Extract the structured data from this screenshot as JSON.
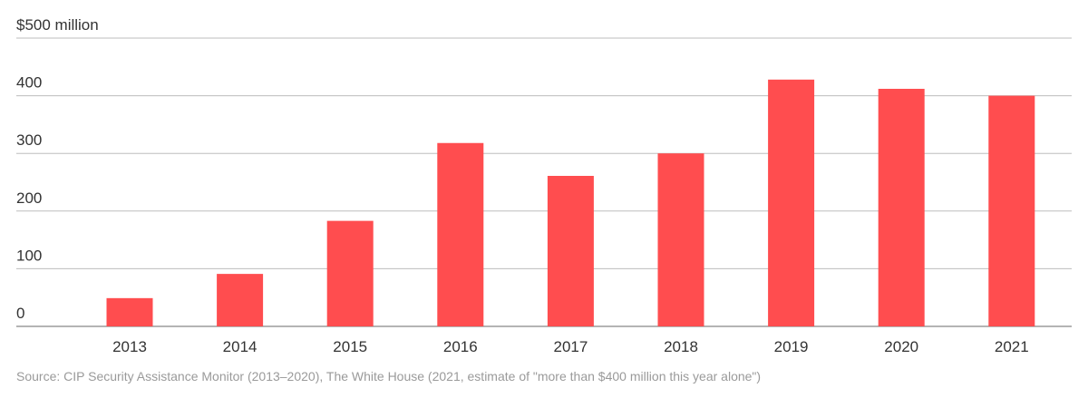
{
  "chart_data": {
    "type": "bar",
    "categories": [
      "2013",
      "2014",
      "2015",
      "2016",
      "2017",
      "2018",
      "2019",
      "2020",
      "2021"
    ],
    "values": [
      49,
      91,
      183,
      318,
      261,
      300,
      428,
      412,
      400
    ],
    "y_tick_labels": [
      "0",
      "100",
      "200",
      "300",
      "400",
      "$500 million"
    ],
    "y_ticks": [
      0,
      100,
      200,
      300,
      400,
      500
    ],
    "ylim": [
      0,
      500
    ],
    "grid": true,
    "bar_color": "#ff4d4f",
    "source": "Source: CIP Security Assistance Monitor (2013–2020), The White House (2021, estimate of \"more than $400 million this year alone\")"
  }
}
